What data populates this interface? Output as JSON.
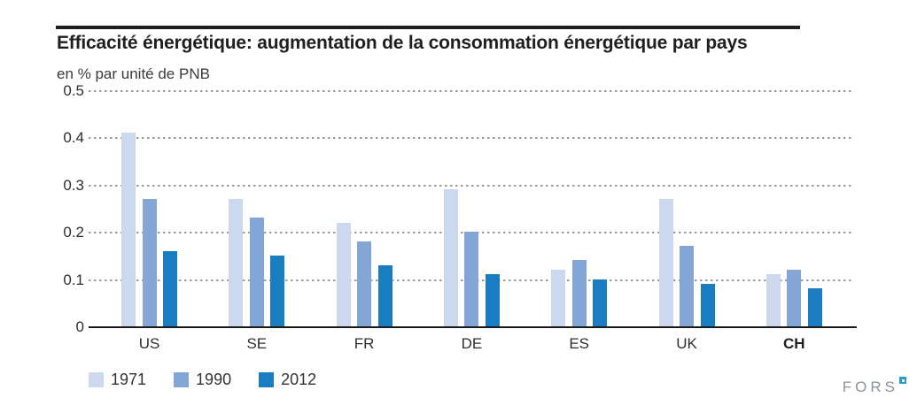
{
  "header": {
    "title": "Efficacité énergétique: augmentation de la consommation énergétique par pays",
    "subtitle": "en % par unité de PNB"
  },
  "chart_data": {
    "type": "bar",
    "title": "Efficacité énergétique: augmentation de la consommation énergétique par pays",
    "subtitle": "en % par unité de PNB",
    "categories": [
      "US",
      "SE",
      "FR",
      "DE",
      "ES",
      "UK",
      "CH"
    ],
    "series": [
      {
        "name": "1971",
        "color": "#cbd8ee",
        "values": [
          0.41,
          0.27,
          0.22,
          0.29,
          0.12,
          0.27,
          0.11
        ]
      },
      {
        "name": "1990",
        "color": "#83a6d6",
        "values": [
          0.27,
          0.23,
          0.18,
          0.2,
          0.14,
          0.17,
          0.12
        ]
      },
      {
        "name": "2012",
        "color": "#1a7dc2",
        "values": [
          0.16,
          0.15,
          0.13,
          0.11,
          0.1,
          0.09,
          0.08
        ]
      }
    ],
    "xlabel": "",
    "ylabel": "en % par unité de PNB",
    "ylim": [
      0,
      0.5
    ],
    "yticks": [
      0,
      0.1,
      0.2,
      0.3,
      0.4,
      0.5
    ],
    "ytick_labels": [
      "0",
      "0.1",
      "0.2",
      "0.3",
      "0.4",
      "0.5"
    ],
    "grid": "horizontal-dotted",
    "legend_position": "bottom-left",
    "highlight_category": "CH"
  },
  "branding": {
    "logo_text": "FORS",
    "logo_accent_color": "#2a9ad2"
  }
}
